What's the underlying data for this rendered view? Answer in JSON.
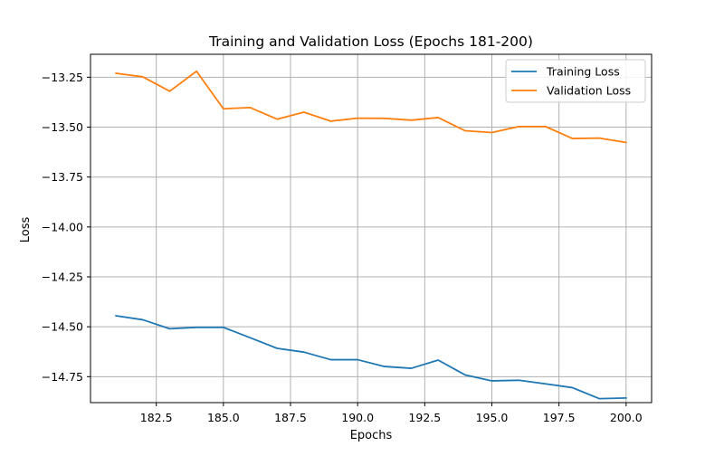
{
  "chart_data": {
    "type": "line",
    "title": "Training and Validation Loss (Epochs 181-200)",
    "xlabel": "Epochs",
    "ylabel": "Loss",
    "xlim": [
      180.05,
      200.95
    ],
    "ylim": [
      -14.88,
      -13.135
    ],
    "xticks": [
      182.5,
      185.0,
      187.5,
      190.0,
      192.5,
      195.0,
      197.5,
      200.0
    ],
    "xtick_labels": [
      "182.5",
      "185.0",
      "187.5",
      "190.0",
      "192.5",
      "195.0",
      "197.5",
      "200.0"
    ],
    "yticks": [
      -13.25,
      -13.5,
      -13.75,
      -14.0,
      -14.25,
      -14.5,
      -14.75
    ],
    "ytick_labels": [
      "−13.25",
      "−13.50",
      "−13.75",
      "−14.00",
      "−14.25",
      "−14.50",
      "−14.75"
    ],
    "grid": true,
    "legend_position": "upper right",
    "x": [
      181,
      182,
      183,
      184,
      185,
      186,
      187,
      188,
      189,
      190,
      191,
      192,
      193,
      194,
      195,
      196,
      197,
      198,
      199,
      200
    ],
    "series": [
      {
        "name": "Training Loss",
        "color": "#1f77b4",
        "values": [
          -14.445,
          -14.465,
          -14.51,
          -14.503,
          -14.503,
          -14.555,
          -14.608,
          -14.627,
          -14.665,
          -14.665,
          -14.699,
          -14.708,
          -14.667,
          -14.741,
          -14.771,
          -14.768,
          -14.786,
          -14.805,
          -14.86,
          -14.857
        ]
      },
      {
        "name": "Validation Loss",
        "color": "#ff7f0e",
        "values": [
          -13.23,
          -13.248,
          -13.32,
          -13.22,
          -13.408,
          -13.402,
          -13.46,
          -13.425,
          -13.47,
          -13.455,
          -13.456,
          -13.465,
          -13.452,
          -13.518,
          -13.527,
          -13.497,
          -13.497,
          -13.557,
          -13.555,
          -13.577
        ]
      }
    ]
  }
}
